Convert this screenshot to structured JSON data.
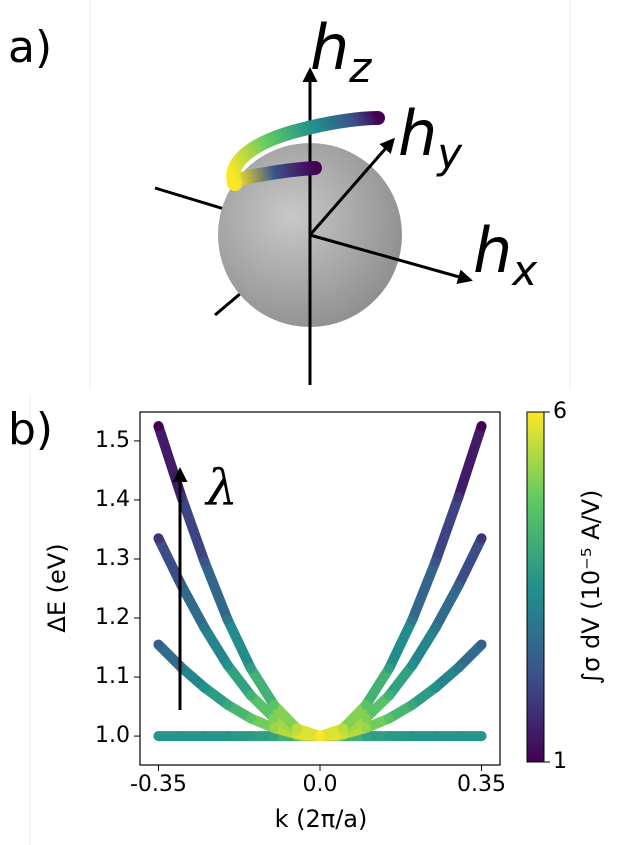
{
  "panel_a": {
    "label": "a)",
    "axes": [
      {
        "main": "h",
        "sub": "z"
      },
      {
        "main": "h",
        "sub": "y"
      },
      {
        "main": "h",
        "sub": "x"
      }
    ]
  },
  "chart_data": {
    "type": "line",
    "panel_label": "b)",
    "x_label": "k (2π/a)",
    "y_label": "ΔE (eV)",
    "annotation": "λ",
    "x": [
      -0.35,
      -0.3,
      -0.25,
      -0.2,
      -0.15,
      -0.1,
      -0.05,
      0,
      0.05,
      0.1,
      0.15,
      0.2,
      0.25,
      0.3,
      0.35
    ],
    "series": [
      {
        "values": [
          1.0,
          1.0,
          1.0,
          1.0,
          1.0,
          1.0,
          1.0,
          1.0,
          1.0,
          1.0,
          1.0,
          1.0,
          1.0,
          1.0,
          1.0
        ],
        "sigma": [
          3.6,
          3.6,
          3.6,
          3.6,
          3.7,
          3.9,
          4.5,
          6,
          4.5,
          3.9,
          3.7,
          3.6,
          3.6,
          3.6,
          3.6
        ]
      },
      {
        "values": [
          1.155,
          1.116,
          1.082,
          1.053,
          1.03,
          1.014,
          1.003,
          1.0,
          1.003,
          1.014,
          1.03,
          1.053,
          1.082,
          1.116,
          1.155
        ],
        "sigma": [
          2.5,
          3,
          3.5,
          4,
          4.6,
          5.2,
          5.7,
          6,
          5.7,
          5.2,
          4.6,
          4,
          3.5,
          3,
          2.5
        ]
      },
      {
        "values": [
          1.335,
          1.255,
          1.183,
          1.12,
          1.069,
          1.031,
          1.008,
          1.0,
          1.008,
          1.031,
          1.069,
          1.12,
          1.183,
          1.255,
          1.335
        ],
        "sigma": [
          1.8,
          2.5,
          3,
          3.5,
          4.2,
          5,
          5.6,
          6,
          5.6,
          5,
          4.2,
          3.5,
          3,
          2.5,
          1.8
        ]
      },
      {
        "values": [
          1.525,
          1.405,
          1.295,
          1.197,
          1.115,
          1.053,
          1.013,
          1.0,
          1.013,
          1.053,
          1.115,
          1.197,
          1.295,
          1.405,
          1.525
        ],
        "sigma": [
          1,
          1.8,
          2.3,
          3,
          3.8,
          4.6,
          5.5,
          6,
          5.5,
          4.6,
          3.8,
          3,
          2.3,
          1.8,
          1
        ]
      }
    ],
    "xlim": [
      -0.39,
      0.39
    ],
    "xticks": [
      -0.35,
      {
        "value": 0,
        "label": "0.0"
      },
      0.35
    ],
    "ylim": [
      0.951,
      1.549
    ],
    "yticks": [
      {
        "value": 1.0,
        "label": "1.0"
      },
      1.1,
      1.2,
      1.3,
      1.4,
      1.5
    ],
    "colorbar": {
      "label": "∫σ dV (10⁻⁵ A/V)",
      "clim": [
        1,
        6
      ],
      "ticks": [
        1,
        6
      ],
      "colormap": "viridis"
    }
  }
}
